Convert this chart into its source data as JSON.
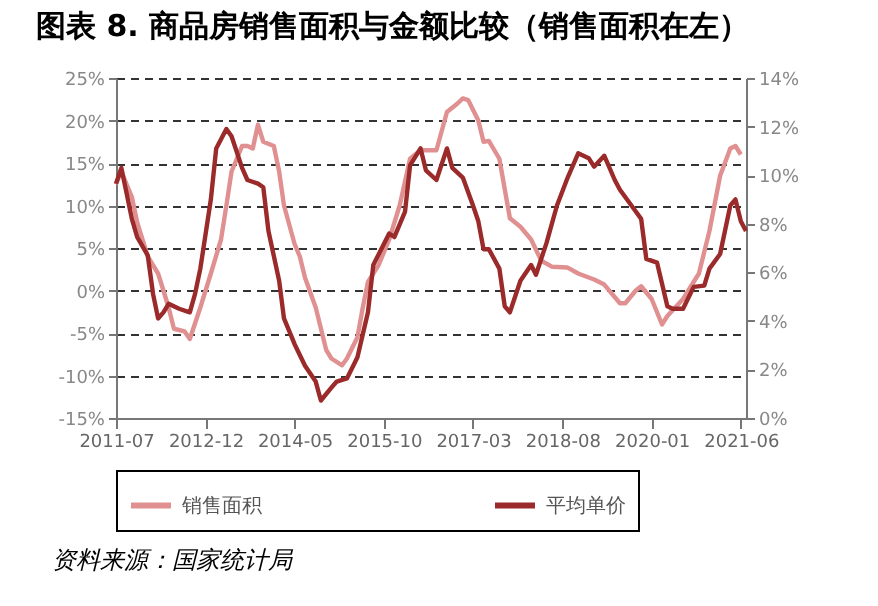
{
  "chart_data": {
    "type": "line",
    "title": "图表 8. 商品房销售面积与金额比较（销售面积在左）",
    "annotations": [
      "资料来源：国家统计局"
    ],
    "series": [
      {
        "name": "销售面积",
        "color": "#e09090",
        "x": [
          "2011-07",
          "2011-08",
          "2011-10",
          "2011-11",
          "2012-01",
          "2012-03",
          "2012-04",
          "2012-05",
          "2012-06",
          "2012-08",
          "2012-09",
          "2012-11",
          "2013-01",
          "2013-03",
          "2013-04",
          "2013-05",
          "2013-07",
          "2013-08",
          "2013-09",
          "2013-10",
          "2013-11",
          "2014-01",
          "2014-02",
          "2014-03",
          "2014-05",
          "2014-06",
          "2014-07",
          "2014-09",
          "2014-11",
          "2014-12",
          "2015-02",
          "2015-03",
          "2015-05",
          "2015-06",
          "2015-07",
          "2015-09",
          "2015-11",
          "2016-01",
          "2016-03",
          "2016-05",
          "2016-08",
          "2016-10",
          "2016-12",
          "2017-01",
          "2017-02",
          "2017-04",
          "2017-05",
          "2017-06",
          "2017-08",
          "2017-10",
          "2017-12",
          "2018-02",
          "2018-04",
          "2018-06",
          "2018-09",
          "2018-11",
          "2019-02",
          "2019-04",
          "2019-07",
          "2019-08",
          "2019-10",
          "2019-11",
          "2020-01",
          "2020-03",
          "2020-04",
          "2020-07",
          "2020-10",
          "2020-12",
          "2021-02",
          "2021-04",
          "2021-05",
          "2021-06"
        ],
        "values": [
          12.5,
          14,
          11,
          8,
          4,
          2,
          0,
          -2,
          -4.5,
          -4.8,
          -5.7,
          -2,
          2,
          6,
          10,
          14,
          17,
          17,
          16.7,
          19.5,
          17.5,
          17,
          14,
          10,
          5.5,
          4,
          1.5,
          -2,
          -7,
          -8,
          -8.8,
          -8,
          -5.5,
          -2,
          1,
          3,
          6,
          10,
          15.5,
          16.5,
          16.5,
          21,
          22,
          22.6,
          22.4,
          20,
          17.5,
          17.6,
          15.5,
          8.5,
          7.5,
          6,
          3.5,
          2.8,
          2.7,
          2,
          1.3,
          0.7,
          -1.5,
          -1.5,
          0,
          0.5,
          -1,
          -4,
          -3,
          -1,
          2,
          7,
          13.5,
          16.7,
          17,
          16
        ]
      },
      {
        "name": "平均单价",
        "color": "#9b2a2a",
        "axis": "y2",
        "x": [
          "2011-07",
          "2011-08",
          "2011-10",
          "2011-11",
          "2012-01",
          "2012-02",
          "2012-03",
          "2012-04",
          "2012-05",
          "2012-07",
          "2012-09",
          "2012-10",
          "2012-11",
          "2013-01",
          "2013-02",
          "2013-04",
          "2013-05",
          "2013-07",
          "2013-08",
          "2013-10",
          "2013-11",
          "2013-12",
          "2014-02",
          "2014-03",
          "2014-05",
          "2014-07",
          "2014-09",
          "2014-10",
          "2014-12",
          "2015-01",
          "2015-03",
          "2015-05",
          "2015-07",
          "2015-08",
          "2015-11",
          "2015-12",
          "2016-02",
          "2016-03",
          "2016-05",
          "2016-06",
          "2016-08",
          "2016-10",
          "2016-11",
          "2017-01",
          "2017-03",
          "2017-04",
          "2017-05",
          "2017-06",
          "2017-08",
          "2017-09",
          "2017-10",
          "2017-12",
          "2018-02",
          "2018-03",
          "2018-05",
          "2018-07",
          "2018-09",
          "2018-11",
          "2019-01",
          "2019-02",
          "2019-04",
          "2019-06",
          "2019-07",
          "2019-10",
          "2019-11",
          "2019-12",
          "2020-02",
          "2020-04",
          "2020-05",
          "2020-07",
          "2020-09",
          "2020-11",
          "2020-12",
          "2021-02",
          "2021-04",
          "2021-05",
          "2021-06",
          "2021-07"
        ],
        "values": [
          9.65,
          10.3,
          8.2,
          7.45,
          6.7,
          5.1,
          4.1,
          4.35,
          4.7,
          4.5,
          4.35,
          5.1,
          6.15,
          9,
          11.1,
          11.9,
          11.6,
          10.3,
          9.8,
          9.65,
          9.5,
          7.7,
          5.65,
          4.1,
          3.05,
          2.15,
          1.5,
          0.72,
          1.25,
          1.5,
          1.63,
          2.5,
          4.35,
          6.3,
          7.6,
          7.45,
          8.5,
          10.4,
          11.1,
          10.2,
          9.8,
          11.1,
          10.3,
          9.9,
          8.75,
          8.1,
          6.95,
          6.95,
          6.15,
          4.6,
          4.35,
          5.65,
          6.3,
          5.9,
          7.2,
          8.75,
          9.9,
          10.9,
          10.7,
          10.35,
          10.8,
          9.8,
          9.4,
          8.5,
          8.2,
          6.55,
          6.4,
          4.6,
          4.5,
          4.5,
          5.4,
          5.45,
          6.15,
          6.75,
          8.75,
          9,
          8.1,
          7.7
        ]
      }
    ],
    "xlim": [
      "2011-07",
      "2021-07"
    ],
    "xticks": [
      "2011-07",
      "2012-12",
      "2014-05",
      "2015-10",
      "2017-03",
      "2018-08",
      "2020-01",
      "2021-06"
    ],
    "ylim": [
      -15,
      25
    ],
    "yticks": [
      {
        "value": -15,
        "label": "-15%"
      },
      {
        "value": -10,
        "label": "-10%"
      },
      {
        "value": -5,
        "label": "-5%"
      },
      {
        "value": 0,
        "label": "0%"
      },
      {
        "value": 5,
        "label": "5%"
      },
      {
        "value": 10,
        "label": "10%"
      },
      {
        "value": 15,
        "label": "15%"
      },
      {
        "value": 20,
        "label": "20%"
      },
      {
        "value": 25,
        "label": "25%"
      }
    ],
    "y2lim": [
      0,
      14
    ],
    "y2ticks": [
      {
        "value": 0,
        "label": "0%"
      },
      {
        "value": 2,
        "label": "2%"
      },
      {
        "value": 4,
        "label": "4%"
      },
      {
        "value": 6,
        "label": "6%"
      },
      {
        "value": 8,
        "label": "8%"
      },
      {
        "value": 10,
        "label": "10%"
      },
      {
        "value": 12,
        "label": "12%"
      },
      {
        "value": 14,
        "label": "14%"
      }
    ],
    "grid": "y",
    "legend": "bottom",
    "marker": "none",
    "line_style": "solid"
  }
}
